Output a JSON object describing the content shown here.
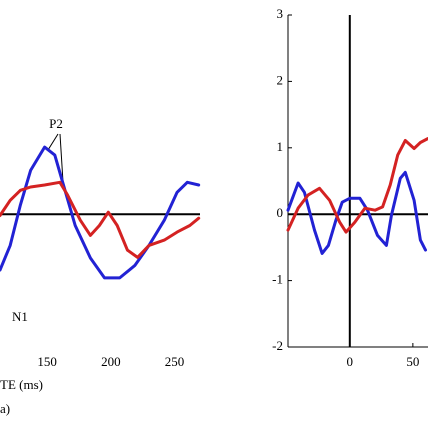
{
  "chart_data": [
    {
      "type": "line",
      "xlabel": "TE (ms)",
      "panel_label": "a)",
      "annotations": [
        "P2",
        "N1"
      ],
      "xlim": [
        113,
        270
      ],
      "ylim": [
        -2,
        3
      ],
      "xticks": [
        150,
        200,
        250
      ],
      "zero_line": true,
      "series": [
        {
          "color": "#2222d4",
          "x": [
            113,
            121,
            129,
            137,
            148,
            156,
            164,
            172,
            184,
            195,
            207,
            219,
            230,
            242,
            252,
            260,
            269
          ],
          "values": [
            -0.84,
            -0.47,
            0.14,
            0.66,
            1.01,
            0.89,
            0.36,
            -0.17,
            -0.66,
            -0.96,
            -0.96,
            -0.77,
            -0.47,
            -0.09,
            0.33,
            0.48,
            0.44
          ]
        },
        {
          "color": "#d42222",
          "x": [
            113,
            121,
            129,
            137,
            148,
            160,
            166,
            176,
            184,
            191,
            198,
            205,
            213,
            221,
            230,
            242,
            252,
            262,
            269
          ],
          "values": [
            -0.02,
            0.21,
            0.36,
            0.41,
            0.44,
            0.48,
            0.29,
            -0.09,
            -0.32,
            -0.17,
            0.03,
            -0.17,
            -0.54,
            -0.65,
            -0.47,
            -0.39,
            -0.27,
            -0.17,
            -0.06
          ]
        }
      ]
    },
    {
      "type": "line",
      "xlim": [
        -49,
        62
      ],
      "ylim": [
        -2,
        3
      ],
      "xticks": [
        0,
        50
      ],
      "yticks": [
        -2,
        -1,
        0,
        1,
        2,
        3
      ],
      "zero_line": true,
      "onset_line": 0,
      "series": [
        {
          "color": "#2222d4",
          "x": [
            -49,
            -41,
            -36,
            -28,
            -22,
            -17,
            -11,
            -6,
            0,
            8,
            14,
            22,
            29,
            33,
            40,
            44,
            51,
            56,
            60
          ],
          "values": [
            0.06,
            0.47,
            0.33,
            -0.24,
            -0.59,
            -0.47,
            -0.09,
            0.18,
            0.24,
            0.24,
            0.06,
            -0.32,
            -0.47,
            -0.02,
            0.54,
            0.63,
            0.21,
            -0.39,
            -0.54
          ]
        },
        {
          "color": "#d42222",
          "x": [
            -49,
            -41,
            -33,
            -24,
            -16,
            -8,
            -3,
            4,
            12,
            20,
            26,
            32,
            38,
            44,
            51,
            56,
            62
          ],
          "values": [
            -0.24,
            0.09,
            0.29,
            0.39,
            0.21,
            -0.12,
            -0.27,
            -0.12,
            0.09,
            0.06,
            0.11,
            0.44,
            0.89,
            1.11,
            0.99,
            1.08,
            1.14
          ]
        }
      ]
    }
  ]
}
